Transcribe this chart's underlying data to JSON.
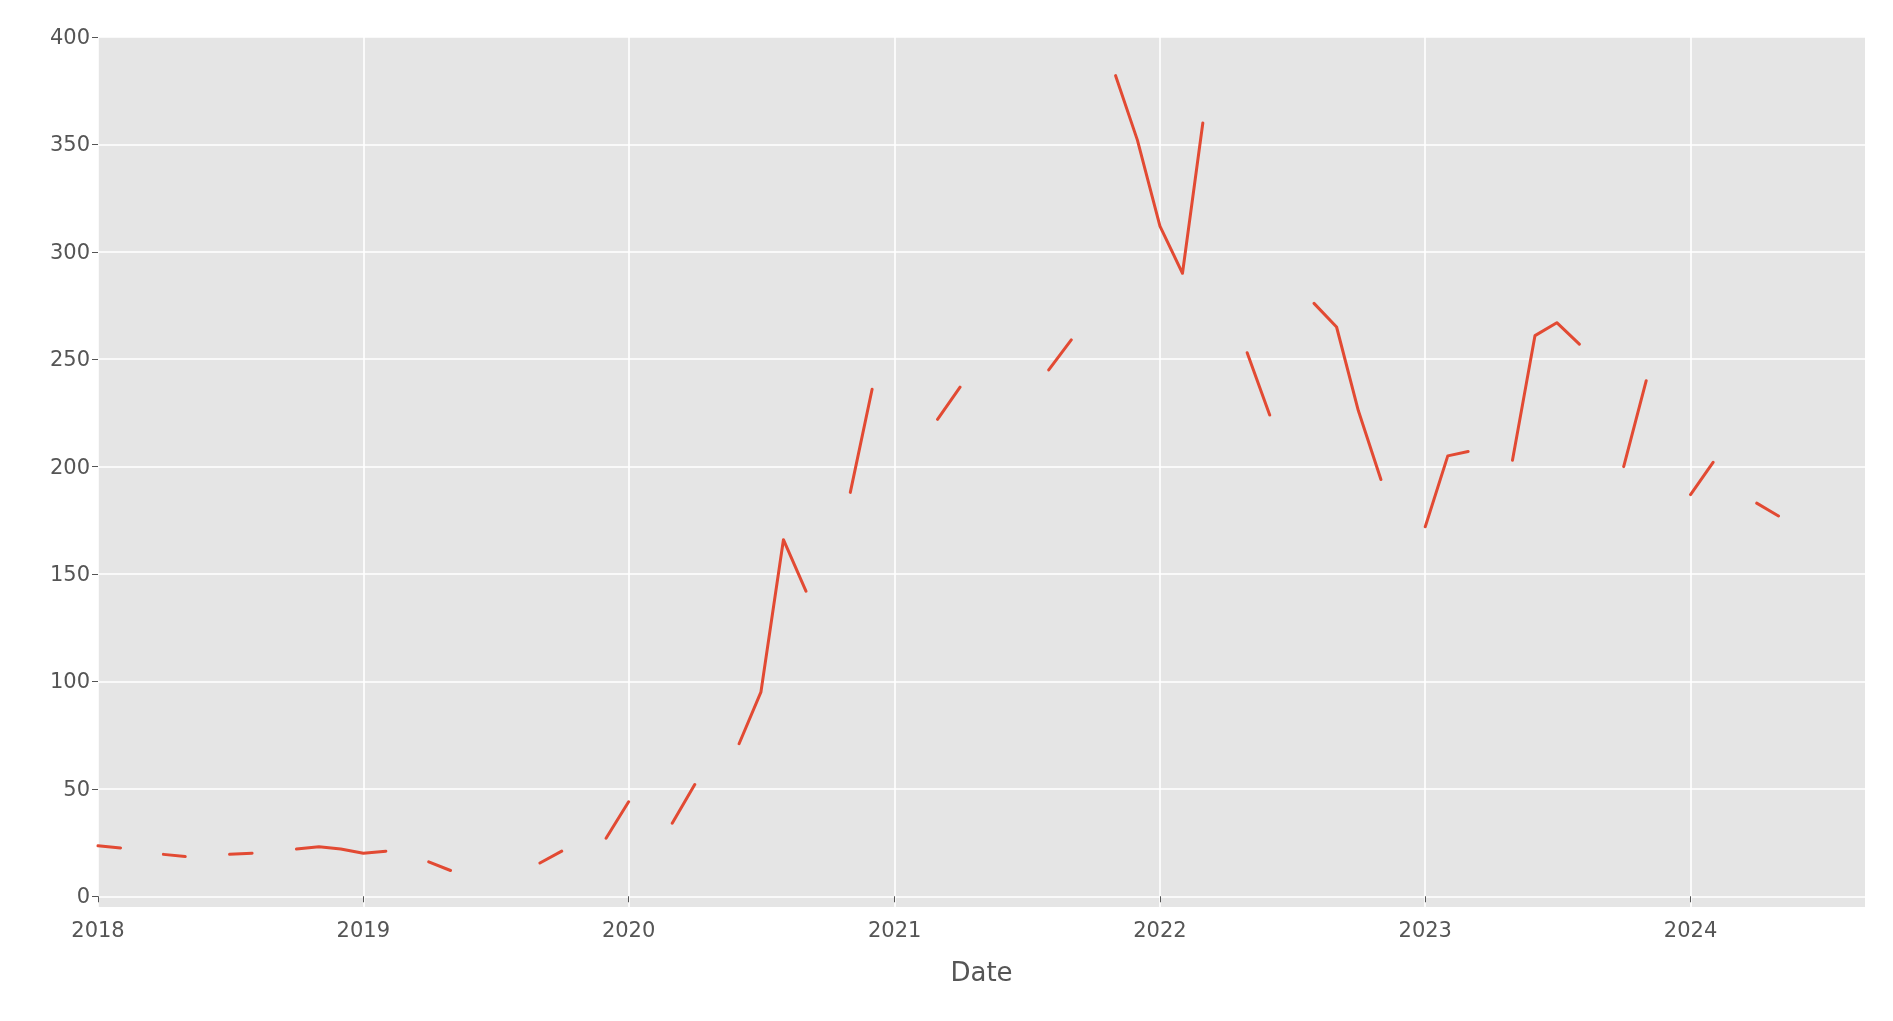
{
  "chart_data": {
    "type": "line",
    "xlabel": "Date",
    "x": [
      "2018-01",
      "2018-02",
      "2018-03",
      "2018-04",
      "2018-05",
      "2018-06",
      "2018-07",
      "2018-08",
      "2018-09",
      "2018-10",
      "2018-11",
      "2018-12",
      "2019-01",
      "2019-02",
      "2019-03",
      "2019-04",
      "2019-05",
      "2019-06",
      "2019-07",
      "2019-08",
      "2019-09",
      "2019-10",
      "2019-11",
      "2019-12",
      "2020-01",
      "2020-02",
      "2020-03",
      "2020-04",
      "2020-05",
      "2020-06",
      "2020-07",
      "2020-08",
      "2020-09",
      "2020-10",
      "2020-11",
      "2020-12",
      "2021-01",
      "2021-02",
      "2021-03",
      "2021-04",
      "2021-05",
      "2021-06",
      "2021-07",
      "2021-08",
      "2021-09",
      "2021-10",
      "2021-11",
      "2021-12",
      "2022-01",
      "2022-02",
      "2022-03",
      "2022-04",
      "2022-05",
      "2022-06",
      "2022-07",
      "2022-08",
      "2022-09",
      "2022-10",
      "2022-11",
      "2022-12",
      "2023-01",
      "2023-02",
      "2023-03",
      "2023-04",
      "2023-05",
      "2023-06",
      "2023-07",
      "2023-08",
      "2023-09",
      "2023-10",
      "2023-11",
      "2023-12",
      "2024-01",
      "2024-02",
      "2024-03",
      "2024-04",
      "2024-05"
    ],
    "series": [
      {
        "color": "#e24a33",
        "values": [
          23.5,
          22.5,
          null,
          19.5,
          18.5,
          null,
          19.5,
          20,
          null,
          22,
          23,
          22,
          20,
          21,
          null,
          16,
          12,
          null,
          null,
          null,
          15.5,
          21,
          null,
          27,
          44,
          null,
          34,
          52,
          null,
          71,
          95,
          166,
          142,
          null,
          188,
          236,
          null,
          null,
          222,
          237,
          null,
          null,
          null,
          245,
          259,
          null,
          382,
          352,
          312,
          290,
          360,
          null,
          253,
          224,
          null,
          276,
          265,
          226,
          194,
          null,
          172,
          205,
          207,
          null,
          203,
          261,
          267,
          257,
          null,
          200,
          240,
          null,
          187,
          202,
          null,
          183,
          177
        ]
      }
    ],
    "xlim": [
      "2018-01-01",
      "2024-08-28"
    ],
    "xticks": [
      {
        "value": "2018-01",
        "label": "2018"
      },
      {
        "value": "2019-01",
        "label": "2019"
      },
      {
        "value": "2020-01",
        "label": "2020"
      },
      {
        "value": "2021-01",
        "label": "2021"
      },
      {
        "value": "2022-01",
        "label": "2022"
      },
      {
        "value": "2023-01",
        "label": "2023"
      },
      {
        "value": "2024-01",
        "label": "2024"
      }
    ],
    "ylim": [
      -5,
      400
    ],
    "yticks": [
      0,
      50,
      100,
      150,
      200,
      250,
      300,
      350,
      400
    ],
    "grid": true,
    "marker": "none",
    "line_style": "solid"
  }
}
